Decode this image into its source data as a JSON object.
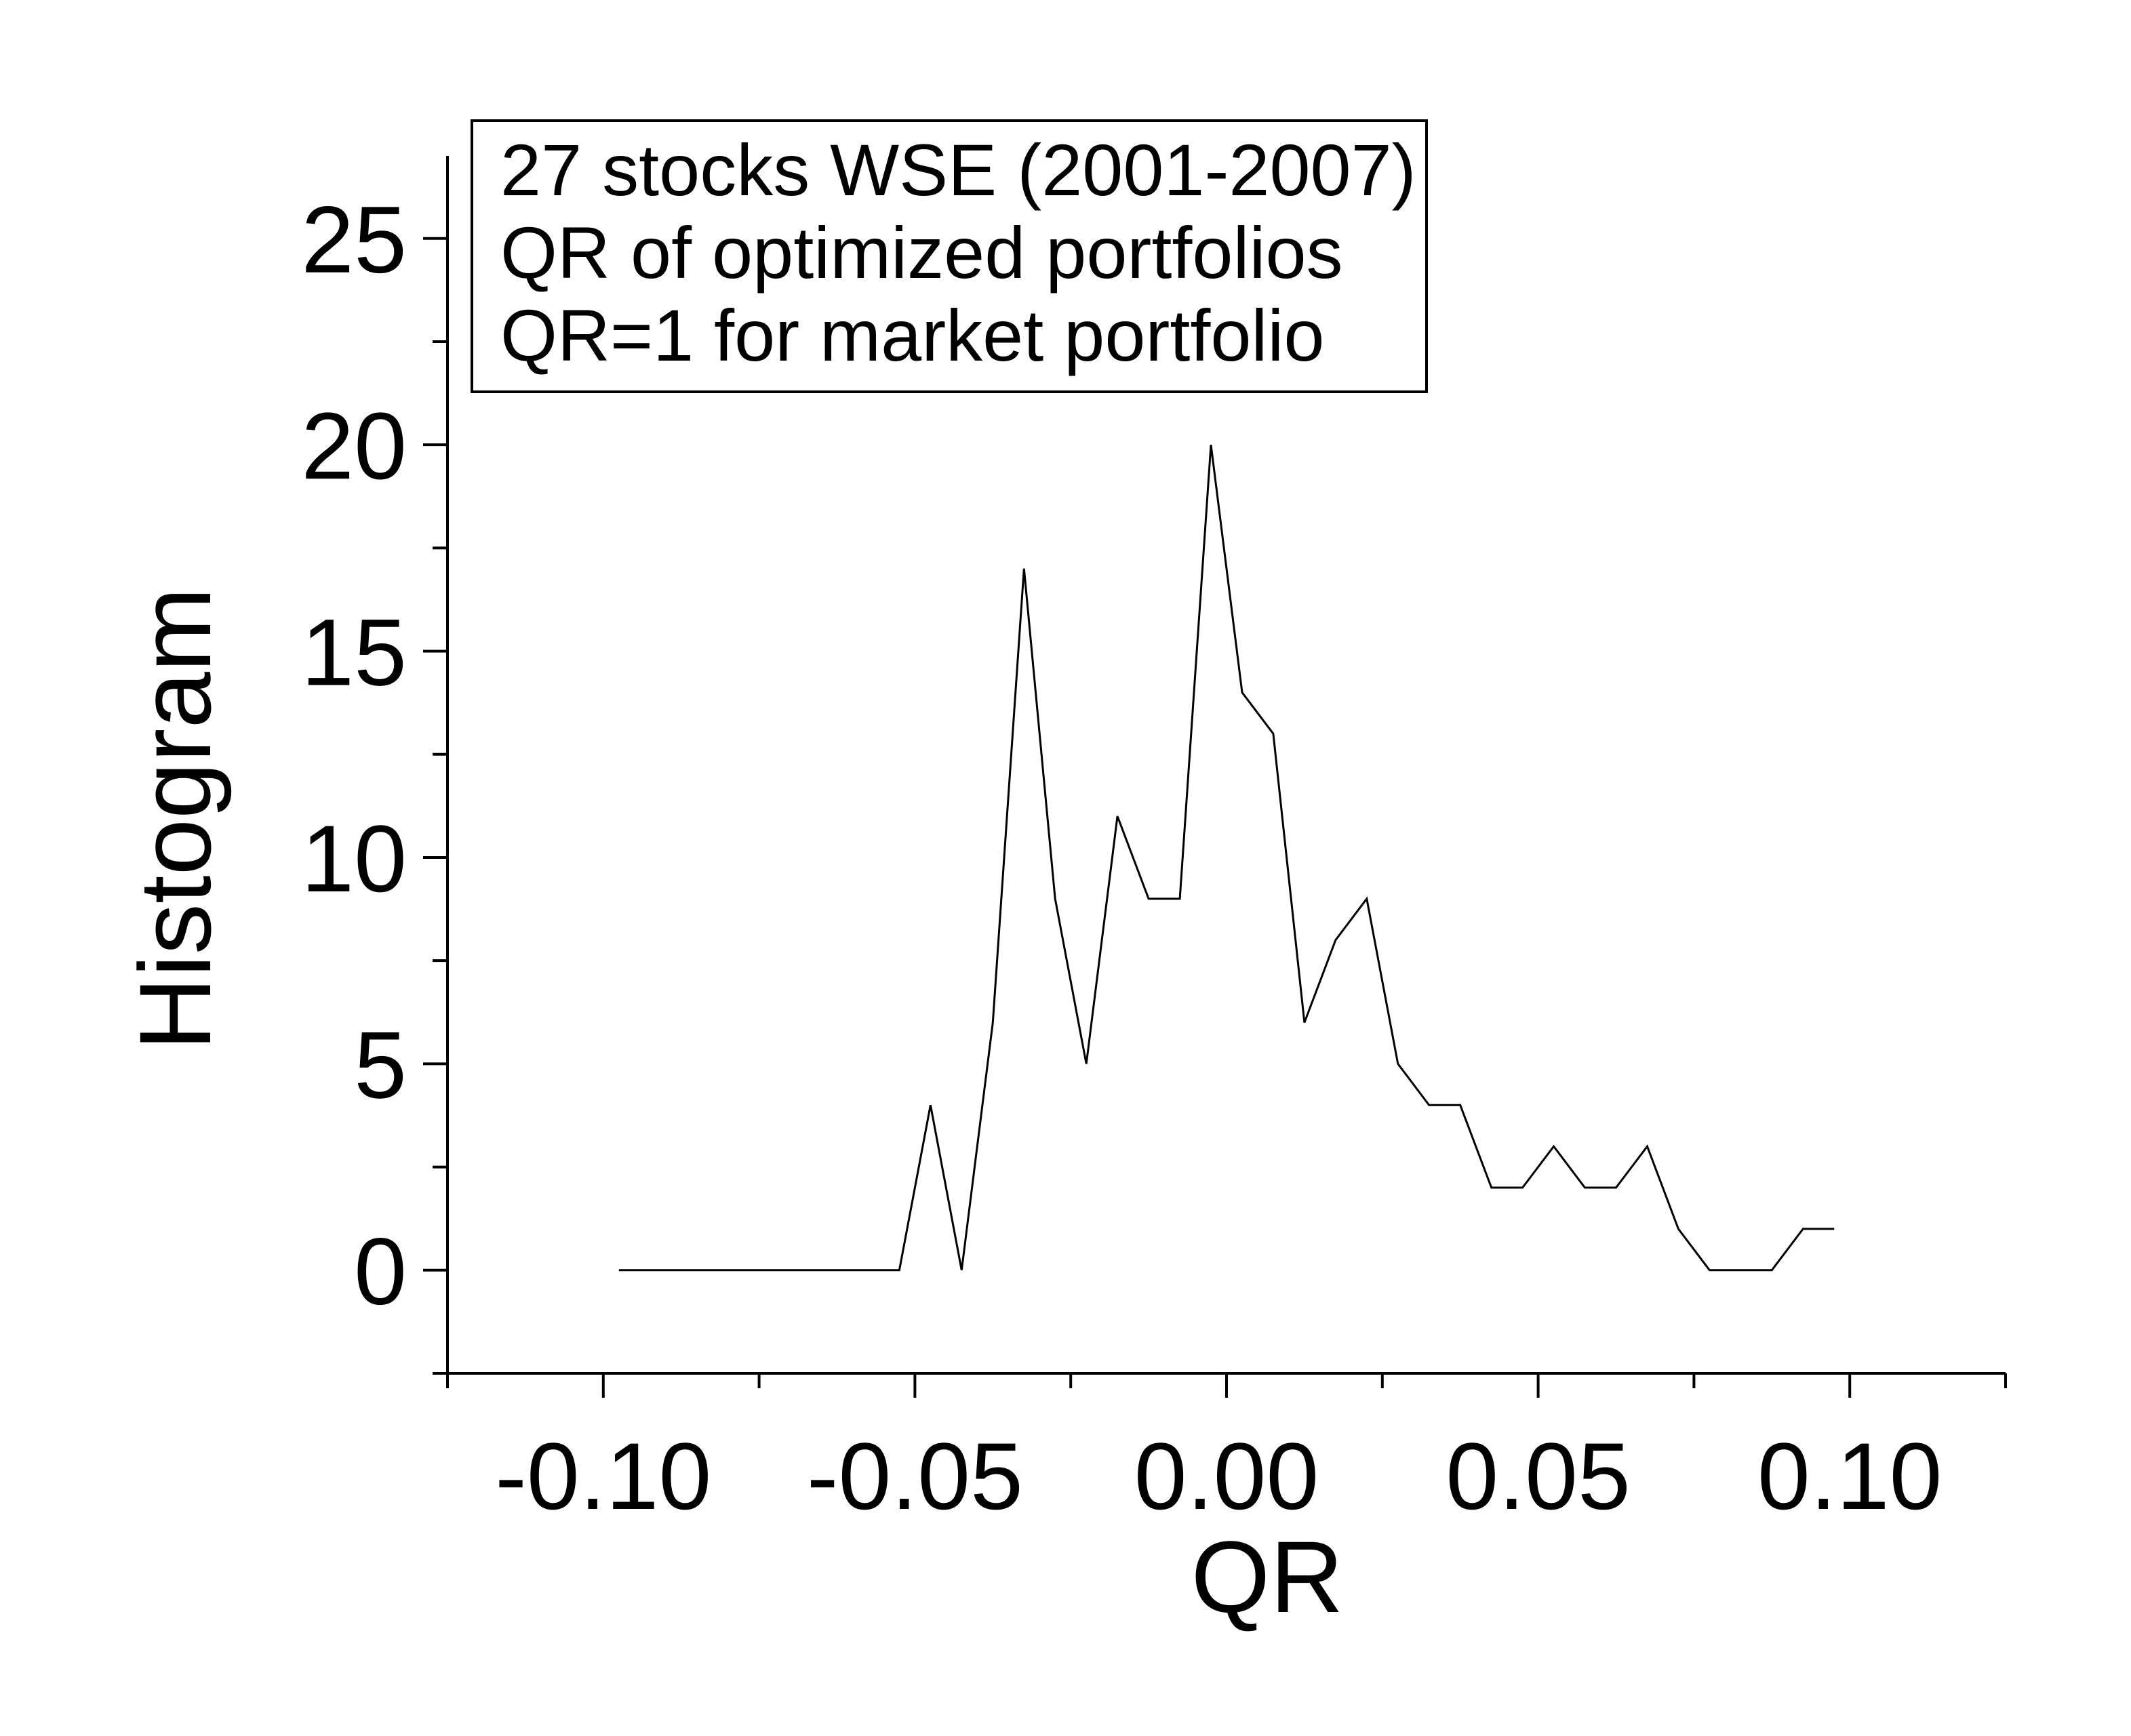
{
  "chart_data": {
    "type": "line",
    "xlabel": "QR",
    "ylabel": "Histogram",
    "xlim": [
      -0.125,
      0.125
    ],
    "ylim": [
      -2.5,
      27
    ],
    "x_ticks": [
      -0.1,
      -0.05,
      0.0,
      0.05,
      0.1
    ],
    "x_tick_labels": [
      "-0.10",
      "-0.05",
      "0.00",
      "0.05",
      "0.10"
    ],
    "y_ticks": [
      0,
      5,
      10,
      15,
      20,
      25
    ],
    "y_tick_labels": [
      "0",
      "5",
      "10",
      "15",
      "20",
      "25"
    ],
    "annotation_lines": [
      "27 stocks WSE (2001-2007)",
      "QR of optimized portfolios",
      "QR=1 for market portfolio"
    ],
    "annotation_position": "top-left",
    "grid": false,
    "series": [
      {
        "color": "#000000",
        "x": [
          -0.0975,
          -0.0925,
          -0.0875,
          -0.0825,
          -0.0775,
          -0.0725,
          -0.0675,
          -0.0625,
          -0.0575,
          -0.0525,
          -0.0475,
          -0.0425,
          -0.0375,
          -0.0325,
          -0.0275,
          -0.0225,
          -0.0175,
          -0.0125,
          -0.0075,
          -0.0025,
          0.0025,
          0.0075,
          0.0125,
          0.0175,
          0.0225,
          0.0275,
          0.0325,
          0.0375,
          0.0425,
          0.0475,
          0.0525,
          0.0575,
          0.0625,
          0.0675,
          0.0725,
          0.0775,
          0.0825,
          0.0875,
          0.0925,
          0.0975
        ],
        "y": [
          0,
          0,
          0,
          0,
          0,
          0,
          0,
          0,
          0,
          0,
          4,
          0,
          6,
          17,
          9,
          5,
          11,
          9,
          9,
          20,
          14,
          13,
          6,
          8,
          9,
          5,
          4,
          4,
          2,
          2,
          3,
          2,
          2,
          3,
          1,
          0,
          0,
          0,
          1,
          1
        ]
      }
    ]
  }
}
